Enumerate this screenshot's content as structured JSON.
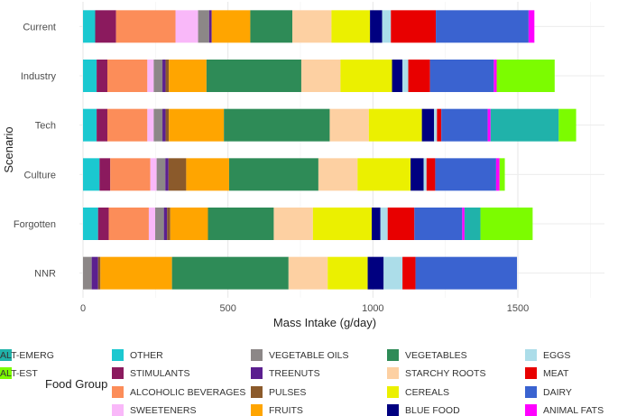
{
  "chart_data": {
    "type": "bar",
    "orientation": "horizontal",
    "stacked": true,
    "title": "",
    "xlabel": "Mass Intake (g/day)",
    "ylabel": "Scenario",
    "xlim": [
      0,
      1750
    ],
    "xticks": [
      0,
      500,
      1000,
      1500
    ],
    "grid": true,
    "legend_title": "Food Group",
    "legend_position": "bottom",
    "categories": [
      "Current",
      "Industry",
      "Tech",
      "Culture",
      "Forgotten",
      "NNR"
    ],
    "series": [
      {
        "name": "OTHER",
        "color": "#1bc8d0",
        "values": [
          42,
          47,
          47,
          57,
          52,
          0
        ]
      },
      {
        "name": "STIMULANTS",
        "color": "#8b1a5e",
        "values": [
          72,
          37,
          37,
          37,
          37,
          0
        ]
      },
      {
        "name": "ALCOHOLIC BEVERAGES",
        "color": "#fc8d59",
        "values": [
          205,
          138,
          138,
          138,
          138,
          0
        ]
      },
      {
        "name": "SWEETENERS",
        "color": "#f9b8f9",
        "values": [
          78,
          22,
          22,
          22,
          22,
          0
        ]
      },
      {
        "name": "VEGETABLE OILS",
        "color": "#8c8787",
        "values": [
          38,
          30,
          30,
          30,
          30,
          30
        ]
      },
      {
        "name": "TREENUTS",
        "color": "#5b1f8f",
        "values": [
          9,
          11,
          11,
          11,
          11,
          22
        ]
      },
      {
        "name": "PULSES",
        "color": "#8b5a2b",
        "values": [
          0,
          11,
          11,
          61,
          11,
          8
        ]
      },
      {
        "name": "FRUITS",
        "color": "#ffa500",
        "values": [
          133,
          130,
          190,
          148,
          130,
          247
        ]
      },
      {
        "name": "VEGETABLES",
        "color": "#2e8b57",
        "values": [
          145,
          327,
          365,
          308,
          227,
          402
        ]
      },
      {
        "name": "STARCHY ROOTS",
        "color": "#fdd0a2",
        "values": [
          135,
          135,
          135,
          135,
          135,
          135
        ]
      },
      {
        "name": "CEREALS",
        "color": "#ebf000",
        "values": [
          133,
          178,
          183,
          183,
          203,
          138
        ]
      },
      {
        "name": "BLUE FOOD",
        "color": "#000080",
        "values": [
          42,
          36,
          42,
          45,
          30,
          55
        ]
      },
      {
        "name": "EGGS",
        "color": "#acdde9",
        "values": [
          30,
          20,
          10,
          10,
          25,
          65
        ]
      },
      {
        "name": "MEAT",
        "color": "#e80000",
        "values": [
          155,
          75,
          15,
          30,
          92,
          45
        ]
      },
      {
        "name": "DAIRY",
        "color": "#3a63d0",
        "values": [
          320,
          220,
          160,
          210,
          165,
          350
        ]
      },
      {
        "name": "ANIMAL FATS",
        "color": "#ff00ff",
        "values": [
          20,
          10,
          10,
          12,
          8,
          0
        ]
      },
      {
        "name": "ALT-EMERG",
        "color": "#20b2aa",
        "values": [
          0,
          0,
          235,
          0,
          55,
          0
        ]
      },
      {
        "name": "ALT-EST",
        "color": "#7cfc00",
        "values": [
          0,
          200,
          60,
          18,
          180,
          0
        ]
      }
    ]
  }
}
